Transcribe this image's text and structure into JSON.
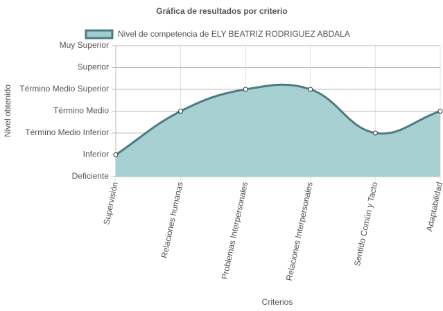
{
  "chart_data": {
    "type": "area",
    "title": "Gráfica de resultados por criterio",
    "x_label": "Criterios",
    "y_label": "Nivel obtenido",
    "categories": [
      "Supervisión",
      "Relaciones humanas",
      "Problemas Interpersonales",
      "Relaciones Interpersonales",
      "Sentido Común y Tacto",
      "Adaptabilidad"
    ],
    "series": [
      {
        "name": "Nivel de competencia de ELY BEATRIZ RODRIGUEZ ABDALA",
        "color": "#4f7a80",
        "fill": "#a2cdd0",
        "values": [
          1,
          3,
          4,
          4,
          2,
          3
        ]
      }
    ],
    "ylim": [
      0,
      6
    ],
    "yticks": [
      {
        "value": 0,
        "label": "Deficiente"
      },
      {
        "value": 1,
        "label": "Inferior"
      },
      {
        "value": 2,
        "label": "Término Medio Inferior"
      },
      {
        "value": 3,
        "label": "Término Medio"
      },
      {
        "value": 4,
        "label": "Término Medio Superior"
      },
      {
        "value": 5,
        "label": "Superior"
      },
      {
        "value": 6,
        "label": "Muy Superior"
      }
    ],
    "grid": true,
    "legend": "top"
  }
}
